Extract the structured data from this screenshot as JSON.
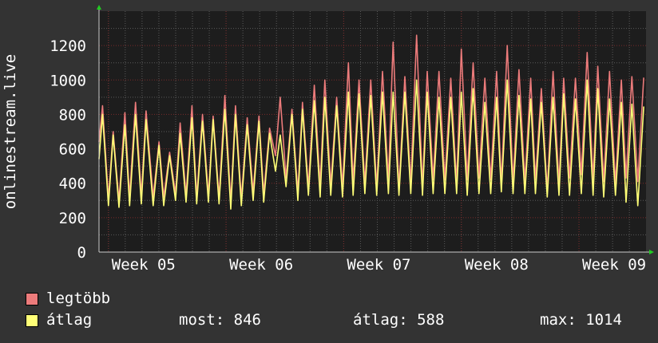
{
  "colors": {
    "background": "#333333",
    "plot_bg": "#1d1d1d",
    "grid_major": "#7a2a2a",
    "grid_minor": "#5a5a5a",
    "max_series": "#ec7b7b",
    "avg_series": "#ffff77",
    "axis_arrow": "#22cc22",
    "text": "#ffffff"
  },
  "legend": {
    "max_label": "legtöbb",
    "avg_label": "átlag",
    "now": "most: 846",
    "avg": "átlag: 588",
    "max": "max: 1014"
  },
  "chart_data": {
    "type": "line",
    "ylabel": "onlinestream.live",
    "ylim": [
      0,
      1400
    ],
    "yticks": [
      0,
      200,
      400,
      600,
      800,
      1000,
      1200
    ],
    "xlim": [
      4.42,
      9.07
    ],
    "xticks": [
      {
        "x": 5,
        "label": "Week 05"
      },
      {
        "x": 6,
        "label": "Week 06"
      },
      {
        "x": 7,
        "label": "Week 07"
      },
      {
        "x": 8,
        "label": "Week 08"
      },
      {
        "x": 9,
        "label": "Week 09"
      }
    ],
    "grid": true,
    "series": [
      {
        "name": "legtöbb",
        "color": "#ec7b7b",
        "x": [
          4.42,
          4.45,
          4.5,
          4.54,
          4.59,
          4.64,
          4.68,
          4.73,
          4.78,
          4.82,
          4.88,
          4.93,
          4.97,
          5.02,
          5.07,
          5.11,
          5.16,
          5.21,
          5.25,
          5.3,
          5.35,
          5.39,
          5.44,
          5.49,
          5.54,
          5.58,
          5.63,
          5.68,
          5.73,
          5.78,
          5.82,
          5.87,
          5.92,
          5.96,
          6.01,
          6.06,
          6.11,
          6.15,
          6.2,
          6.25,
          6.3,
          6.34,
          6.39,
          6.44,
          6.49,
          6.54,
          6.58,
          6.63,
          6.68,
          6.73,
          6.78,
          6.83,
          6.88,
          6.92,
          6.97,
          7.02,
          7.07,
          7.12,
          7.17,
          7.21,
          7.26,
          7.31,
          7.36,
          7.41,
          7.46,
          7.5,
          7.55,
          7.6,
          7.65,
          7.7,
          7.75,
          7.8,
          7.84,
          7.89,
          7.94,
          7.99,
          8.04,
          8.09,
          8.13,
          8.18,
          8.23,
          8.28,
          8.33,
          8.37,
          8.42,
          8.47,
          8.52,
          8.57,
          8.62,
          8.66,
          8.71,
          8.76,
          8.81,
          8.86,
          8.9,
          8.95,
          9.0,
          9.05
        ],
        "y": [
          640,
          850,
          310,
          700,
          300,
          810,
          320,
          870,
          330,
          820,
          320,
          640,
          320,
          580,
          340,
          750,
          330,
          850,
          320,
          800,
          330,
          790,
          320,
          910,
          290,
          850,
          310,
          780,
          350,
          790,
          340,
          720,
          560,
          900,
          430,
          830,
          350,
          870,
          380,
          970,
          390,
          1000,
          390,
          900,
          380,
          1100,
          410,
          1000,
          400,
          1000,
          380,
          1050,
          420,
          1220,
          370,
          1020,
          400,
          1260,
          380,
          1050,
          420,
          1050,
          420,
          1010,
          400,
          1180,
          420,
          1100,
          430,
          1010,
          420,
          1050,
          400,
          1200,
          410,
          1060,
          410,
          1010,
          420,
          950,
          360,
          1050,
          400,
          1010,
          430,
          1010,
          450,
          1160,
          420,
          1080,
          410,
          1050,
          400,
          1000,
          430,
          1020,
          410,
          1014
        ]
      },
      {
        "name": "átlag",
        "color": "#ffff77",
        "x": [
          4.42,
          4.45,
          4.5,
          4.54,
          4.59,
          4.64,
          4.68,
          4.73,
          4.78,
          4.82,
          4.88,
          4.93,
          4.97,
          5.02,
          5.07,
          5.11,
          5.16,
          5.21,
          5.25,
          5.3,
          5.35,
          5.39,
          5.44,
          5.49,
          5.54,
          5.58,
          5.63,
          5.68,
          5.73,
          5.78,
          5.82,
          5.87,
          5.92,
          5.96,
          6.01,
          6.06,
          6.11,
          6.15,
          6.2,
          6.25,
          6.3,
          6.34,
          6.39,
          6.44,
          6.49,
          6.54,
          6.58,
          6.63,
          6.68,
          6.73,
          6.78,
          6.83,
          6.88,
          6.92,
          6.97,
          7.02,
          7.07,
          7.12,
          7.17,
          7.21,
          7.26,
          7.31,
          7.36,
          7.41,
          7.46,
          7.5,
          7.55,
          7.6,
          7.65,
          7.7,
          7.75,
          7.8,
          7.84,
          7.89,
          7.94,
          7.99,
          8.04,
          8.09,
          8.13,
          8.18,
          8.23,
          8.28,
          8.33,
          8.37,
          8.42,
          8.47,
          8.52,
          8.57,
          8.62,
          8.66,
          8.71,
          8.76,
          8.81,
          8.86,
          8.9,
          8.95,
          9.0,
          9.05
        ],
        "y": [
          540,
          800,
          270,
          680,
          260,
          740,
          270,
          800,
          280,
          770,
          270,
          620,
          270,
          560,
          300,
          690,
          290,
          780,
          280,
          760,
          290,
          770,
          280,
          830,
          250,
          800,
          270,
          740,
          300,
          760,
          290,
          690,
          470,
          680,
          380,
          800,
          300,
          830,
          330,
          880,
          320,
          900,
          330,
          850,
          320,
          930,
          330,
          920,
          340,
          910,
          330,
          930,
          340,
          930,
          330,
          930,
          340,
          1000,
          330,
          930,
          340,
          900,
          340,
          900,
          340,
          930,
          330,
          950,
          340,
          870,
          340,
          900,
          350,
          1000,
          340,
          910,
          340,
          890,
          340,
          870,
          320,
          900,
          330,
          920,
          330,
          890,
          340,
          1000,
          330,
          950,
          320,
          890,
          330,
          870,
          290,
          860,
          270,
          846
        ]
      }
    ]
  }
}
